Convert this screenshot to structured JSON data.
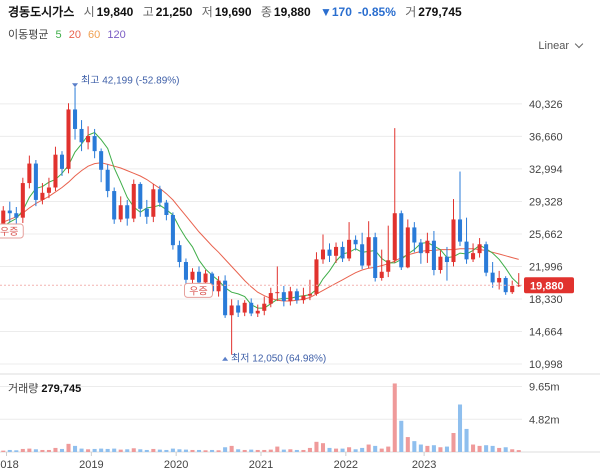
{
  "header": {
    "name": "경동도시가스",
    "open_label": "시",
    "open": "19,840",
    "high_label": "고",
    "high": "21,250",
    "low_label": "저",
    "low": "19,690",
    "close_label": "종",
    "close": "19,880",
    "change": "▼170",
    "change_pct": "-0.85%",
    "volume_label": "거",
    "volume": "279,745"
  },
  "ma_legend": {
    "label": "이동평균",
    "periods": [
      {
        "text": "5",
        "color": "#3fae49"
      },
      {
        "text": "20",
        "color": "#e9634f"
      },
      {
        "text": "60",
        "color": "#f0a050"
      },
      {
        "text": "120",
        "color": "#7b5dc4"
      }
    ]
  },
  "scale_selector": "Linear",
  "colors": {
    "up": "#e1322e",
    "down": "#2a7bd8",
    "vol_up": "#ef9a9a",
    "vol_down": "#8fbfee",
    "ma5": "#3fae49",
    "ma20": "#e9634f",
    "current_price_bg": "#e1322e",
    "grid": "#ececec"
  },
  "chart_data": {
    "type": "candlestick",
    "title": "경동도시가스",
    "scale": "Linear",
    "price_axis_ticks": [
      40326,
      36660,
      32994,
      29328,
      25662,
      21996,
      18330,
      14664,
      10998
    ],
    "price_axis_labels": [
      "40,326",
      "36,660",
      "32,994",
      "29,328",
      "25,662",
      "21,996",
      "18,330",
      "14,664",
      "10,998"
    ],
    "ylim": [
      10100,
      45500
    ],
    "year_labels": [
      "2018",
      "2019",
      "2020",
      "2021",
      "2022",
      "2023"
    ],
    "year_positions": [
      0.5,
      13.5,
      26.5,
      39.5,
      52.5,
      64.5
    ],
    "x_count": 80,
    "current_price": 19880,
    "current_price_label": "19,880",
    "high_annotation": {
      "index": 11,
      "value": 42199,
      "label": "최고",
      "value_label": "42,199",
      "pct": "(-52.89%)"
    },
    "low_annotation": {
      "index": 34,
      "value": 12050,
      "label": "최저",
      "value_label": "12,050",
      "pct": "(64.98%)"
    },
    "badges": [
      {
        "text": "우증",
        "index": 0,
        "value": 26000
      },
      {
        "text": "우증",
        "index": 29,
        "value": 19300
      }
    ],
    "candles": [
      [
        26500,
        28300,
        28800,
        25800
      ],
      [
        28300,
        28000,
        29300,
        27000
      ],
      [
        28000,
        27500,
        28700,
        26600
      ],
      [
        27500,
        31400,
        32000,
        26900
      ],
      [
        31400,
        33600,
        34500,
        30800
      ],
      [
        33600,
        29500,
        34000,
        28800
      ],
      [
        29500,
        30300,
        31400,
        29000
      ],
      [
        30300,
        30900,
        32000,
        29700
      ],
      [
        30900,
        34600,
        35500,
        30500
      ],
      [
        34600,
        33000,
        35000,
        32200
      ],
      [
        33000,
        39700,
        40400,
        32500
      ],
      [
        39700,
        37500,
        42199,
        36300
      ],
      [
        37500,
        36000,
        38500,
        35000
      ],
      [
        36000,
        36700,
        37800,
        35200
      ],
      [
        36700,
        35000,
        37500,
        34200
      ],
      [
        35000,
        32900,
        35300,
        31500
      ],
      [
        32900,
        30500,
        33500,
        29800
      ],
      [
        30500,
        27300,
        30900,
        26800
      ],
      [
        27300,
        28900,
        29900,
        27000
      ],
      [
        28900,
        27400,
        29500,
        26600
      ],
      [
        27400,
        31300,
        31800,
        27000
      ],
      [
        31300,
        28500,
        31500,
        27600
      ],
      [
        28500,
        27600,
        29500,
        26800
      ],
      [
        27600,
        30700,
        31300,
        27000
      ],
      [
        30700,
        29200,
        31100,
        28700
      ],
      [
        29200,
        27800,
        29500,
        27200
      ],
      [
        27800,
        24400,
        28100,
        23900
      ],
      [
        24400,
        22500,
        24900,
        21900
      ],
      [
        22500,
        20500,
        22900,
        20000
      ],
      [
        20500,
        21400,
        21800,
        20000
      ],
      [
        21400,
        20200,
        22000,
        19900
      ],
      [
        20200,
        21200,
        21600,
        19700
      ],
      [
        21200,
        19200,
        21400,
        18800
      ],
      [
        19200,
        20400,
        20900,
        18600
      ],
      [
        20400,
        16500,
        21000,
        16200
      ],
      [
        16500,
        17600,
        18300,
        12050
      ],
      [
        17600,
        16800,
        18200,
        16300
      ],
      [
        16800,
        17900,
        18200,
        16400
      ],
      [
        17900,
        16700,
        18400,
        16400
      ],
      [
        16700,
        17000,
        17700,
        16300
      ],
      [
        17000,
        17800,
        18600,
        16500
      ],
      [
        17800,
        19000,
        19600,
        17400
      ],
      [
        19000,
        19100,
        22000,
        18100
      ],
      [
        19100,
        18100,
        19800,
        17500
      ],
      [
        18100,
        19200,
        19700,
        17600
      ],
      [
        19200,
        18200,
        19500,
        17800
      ],
      [
        18200,
        18700,
        19600,
        17800
      ],
      [
        18700,
        18900,
        20500,
        18200
      ],
      [
        18900,
        22800,
        23600,
        18700
      ],
      [
        22800,
        23900,
        25600,
        22300
      ],
      [
        23900,
        23200,
        24600,
        22500
      ],
      [
        23200,
        24200,
        24700,
        22400
      ],
      [
        24200,
        22900,
        24800,
        22500
      ],
      [
        22900,
        25000,
        27000,
        22600
      ],
      [
        25000,
        24500,
        25500,
        23800
      ],
      [
        24500,
        22100,
        25800,
        21700
      ],
      [
        22100,
        25300,
        27100,
        21800
      ],
      [
        25300,
        20700,
        25800,
        20300
      ],
      [
        20700,
        21400,
        23900,
        20400
      ],
      [
        21400,
        22700,
        26600,
        20800
      ],
      [
        22700,
        28000,
        37600,
        22400
      ],
      [
        28000,
        21900,
        28300,
        21600
      ],
      [
        21900,
        26400,
        27300,
        21800
      ],
      [
        26400,
        24700,
        27000,
        23600
      ],
      [
        24700,
        23500,
        25100,
        22300
      ],
      [
        23500,
        24900,
        25800,
        22400
      ],
      [
        24900,
        21600,
        26000,
        21000
      ],
      [
        21600,
        23100,
        23800,
        21200
      ],
      [
        23100,
        22500,
        24200,
        20400
      ],
      [
        22500,
        27300,
        29600,
        22000
      ],
      [
        27300,
        24800,
        32700,
        24300
      ],
      [
        24800,
        22800,
        27500,
        22300
      ],
      [
        22800,
        23500,
        24600,
        22500
      ],
      [
        23500,
        24500,
        25200,
        23000
      ],
      [
        24500,
        21300,
        24800,
        20900
      ],
      [
        21300,
        20200,
        22500,
        19600
      ],
      [
        20200,
        20700,
        21500,
        19400
      ],
      [
        20700,
        19100,
        20900,
        18800
      ],
      [
        19100,
        19800,
        20400,
        18900
      ],
      [
        19840,
        19880,
        21250,
        19690
      ]
    ],
    "ma5_values": [
      26500,
      27000,
      27400,
      28300,
      29800,
      30800,
      31000,
      31500,
      31800,
      32500,
      33400,
      34900,
      35800,
      36800,
      37100,
      36300,
      35300,
      33100,
      31500,
      29800,
      28700,
      28100,
      28600,
      28700,
      28900,
      28400,
      27800,
      26400,
      25200,
      24200,
      22700,
      21700,
      21000,
      20400,
      19600,
      19100,
      18900,
      18600,
      17700,
      17300,
      17300,
      17800,
      18300,
      18400,
      18400,
      18600,
      18700,
      18800,
      19400,
      20600,
      21500,
      22600,
      23400,
      23600,
      24000,
      23600,
      23700,
      23800,
      22900,
      22400,
      22400,
      22800,
      23400,
      23900,
      24600,
      24700,
      24300,
      23900,
      23000,
      23100,
      23500,
      23400,
      23800,
      24400,
      24000,
      23500,
      22800,
      21800,
      20700,
      20000
    ],
    "ma20_values": [
      27000,
      27300,
      27600,
      28000,
      28600,
      29100,
      29500,
      29900,
      30400,
      30900,
      31500,
      32200,
      32800,
      33300,
      33600,
      33700,
      33500,
      33300,
      33100,
      32800,
      32500,
      32200,
      31800,
      31300,
      30800,
      30200,
      29500,
      28600,
      27700,
      26800,
      25900,
      25100,
      24300,
      23600,
      22800,
      22000,
      21200,
      20400,
      19700,
      19100,
      18700,
      18400,
      18200,
      18100,
      18100,
      18200,
      18300,
      18500,
      18900,
      19300,
      19700,
      20100,
      20500,
      20900,
      21300,
      21600,
      21800,
      21900,
      22100,
      22300,
      22600,
      23000,
      23300,
      23500,
      23700,
      23800,
      23800,
      23900,
      23900,
      23900,
      24000,
      24000,
      24000,
      23900,
      23800,
      23600,
      23400,
      23200,
      23000,
      22800
    ],
    "volume_axis_labels": [
      "9.65m",
      "4.82m"
    ],
    "volume_axis_values": [
      9650000,
      4820000
    ],
    "volume_label": "거래량",
    "volume_value_label": "279,745",
    "volumes": [
      200000,
      300000,
      250000,
      450000,
      500000,
      400000,
      300000,
      300000,
      600000,
      450000,
      1200000,
      900000,
      500000,
      400000,
      450000,
      500000,
      450000,
      500000,
      350000,
      400000,
      550000,
      400000,
      300000,
      450000,
      350000,
      300000,
      500000,
      400000,
      350000,
      300000,
      300000,
      250000,
      300000,
      250000,
      700000,
      900000,
      400000,
      300000,
      350000,
      300000,
      300000,
      350000,
      800000,
      350000,
      400000,
      300000,
      300000,
      600000,
      1500000,
      1300000,
      600000,
      500000,
      500000,
      700000,
      400000,
      600000,
      1100000,
      900000,
      500000,
      800000,
      10100000,
      4600000,
      2200000,
      1600000,
      1100000,
      900000,
      1000000,
      700000,
      800000,
      2800000,
      7000000,
      3400000,
      1100000,
      900000,
      1000000,
      900000,
      600000,
      700000,
      400000,
      279745
    ]
  }
}
